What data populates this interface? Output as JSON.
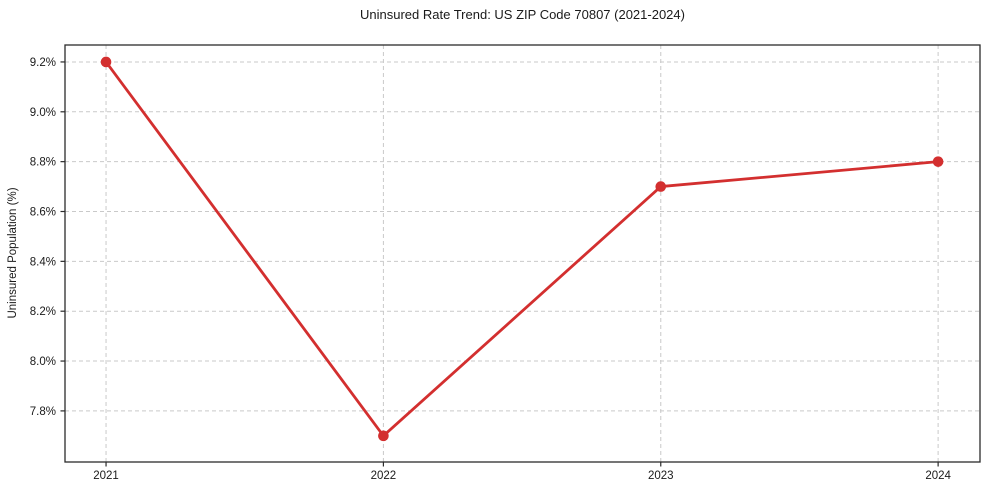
{
  "chart_data": {
    "type": "line",
    "title": "Uninsured Rate Trend: US ZIP Code 70807 (2021-2024)",
    "xlabel": "",
    "ylabel": "Uninsured Population (%)",
    "x": [
      2021,
      2022,
      2023,
      2024
    ],
    "values": [
      9.2,
      7.7,
      8.7,
      8.8
    ],
    "xtick_labels": [
      "2021",
      "2022",
      "2023",
      "2024"
    ],
    "yticks": [
      7.8,
      8.0,
      8.2,
      8.4,
      8.6,
      8.8,
      9.0,
      9.2
    ],
    "ytick_labels": [
      "7.8%",
      "8.0%",
      "8.2%",
      "8.4%",
      "8.6%",
      "8.8%",
      "9.0%",
      "9.2%"
    ],
    "xlim": [
      2020.852,
      2024.151
    ],
    "ylim": [
      7.595,
      9.268
    ],
    "grid": true,
    "grid_style": "dashed",
    "legend_position": "none",
    "line_color": "#d32f2f",
    "marker": "circle",
    "grid_color": "#c9c9c9",
    "spine_color": "#2b2b2b"
  }
}
